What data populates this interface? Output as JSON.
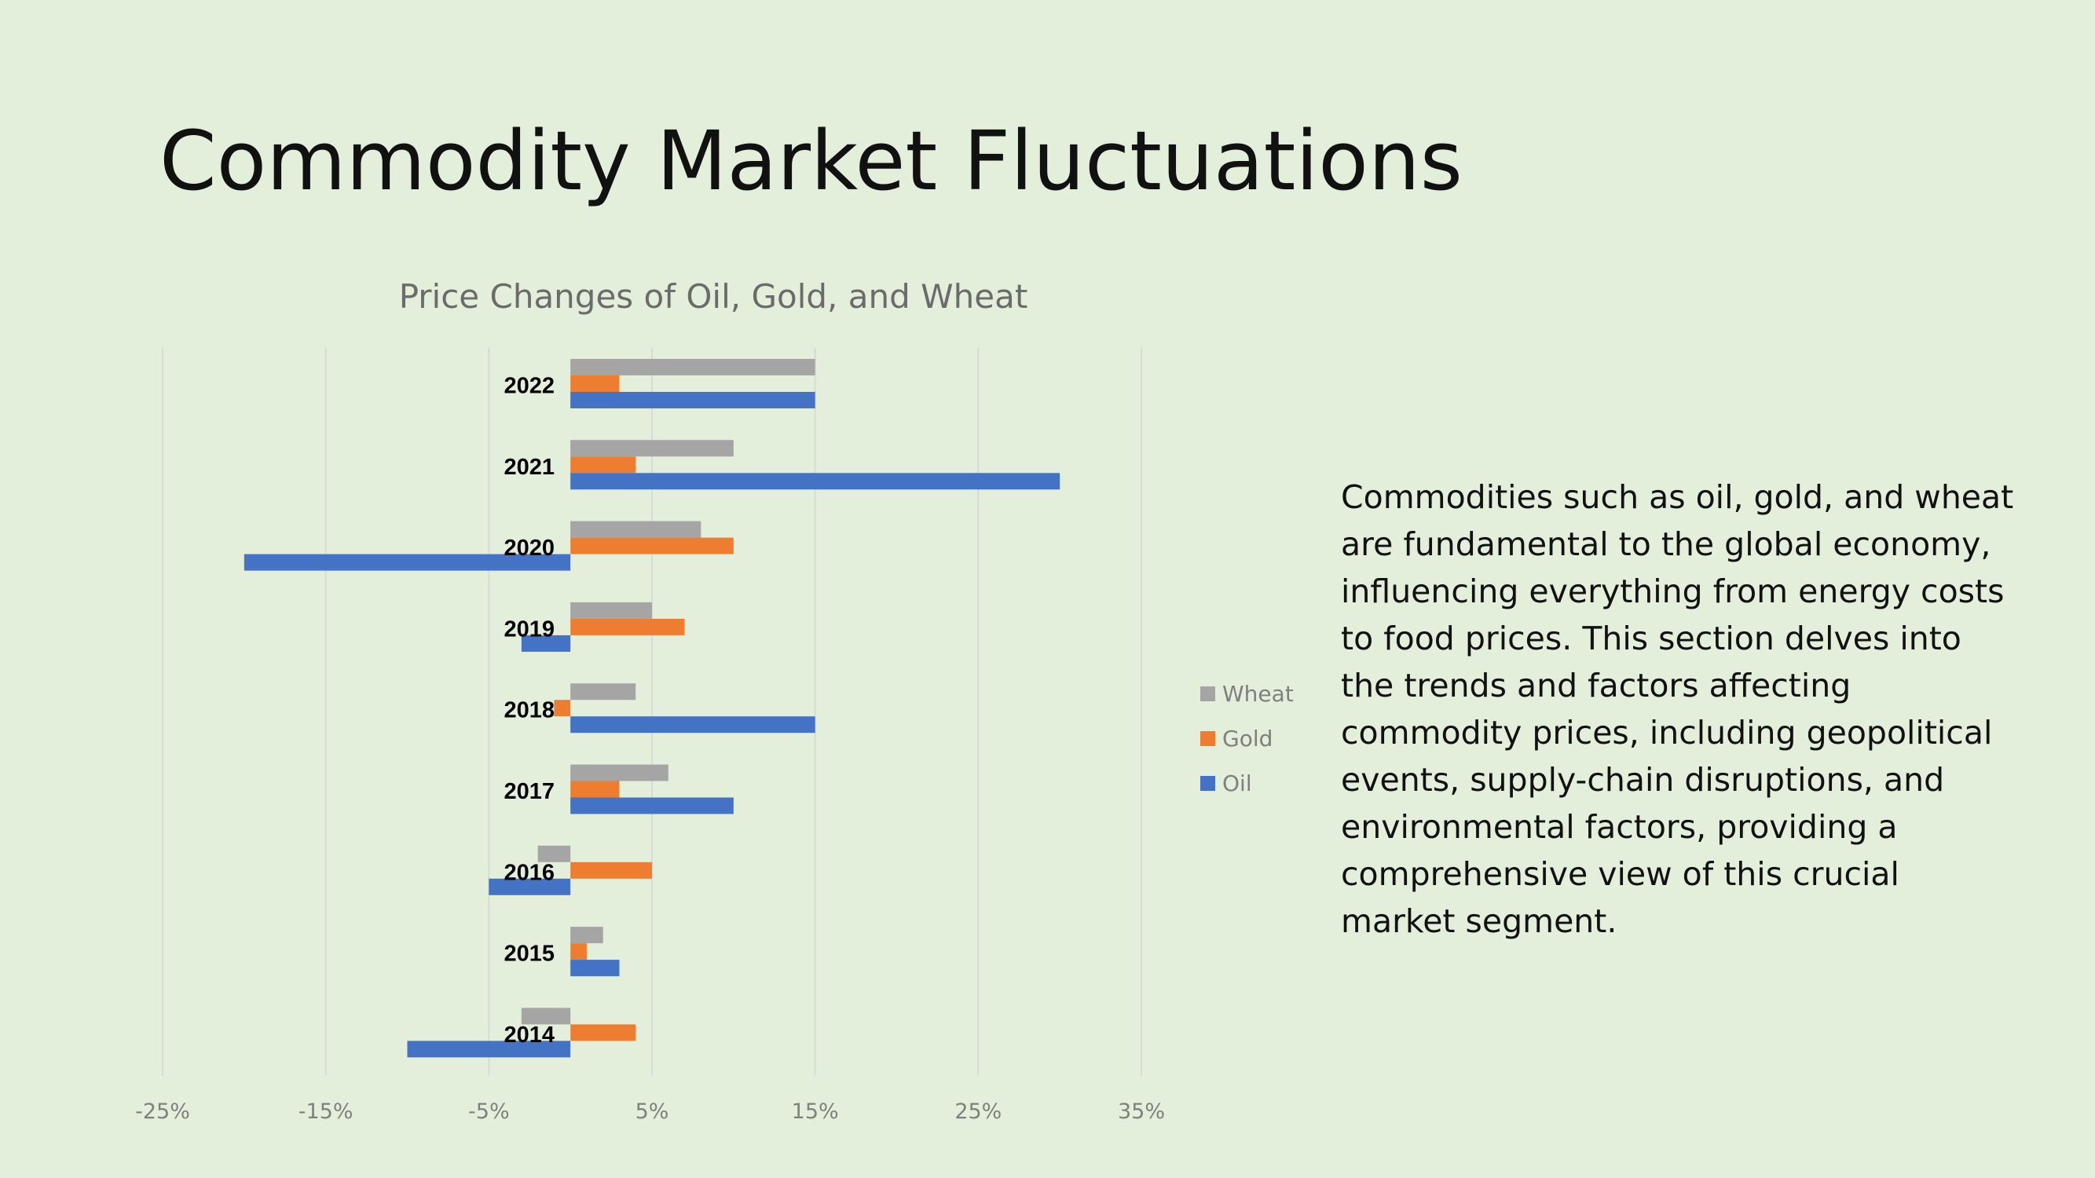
{
  "slide": {
    "title": "Commodity Market Fluctuations",
    "body_text": "Commodities such as oil, gold, and wheat are fundamental to the global economy, influencing everything from energy costs to food prices. This section delves into the trends and factors affecting commodity prices, including geopolitical events, supply-chain disruptions, and environmental factors, providing a comprehensive view of this crucial market segment."
  },
  "colors": {
    "background": "#e4efdb",
    "wheat": "#a5a5a5",
    "gold": "#ed7d31",
    "oil": "#4472c4",
    "gridline": "#d9d9d9",
    "tick_text": "#7f7f7f",
    "chart_title_text": "#6b6b6b"
  },
  "chart_data": {
    "type": "bar",
    "orientation": "horizontal",
    "title": "Price Changes of Oil, Gold, and Wheat",
    "xlabel": "",
    "ylabel": "",
    "categories": [
      "2022",
      "2021",
      "2020",
      "2019",
      "2018",
      "2017",
      "2016",
      "2015",
      "2014"
    ],
    "series": [
      {
        "name": "Wheat",
        "color": "#a5a5a5",
        "values": [
          15,
          10,
          8,
          5,
          4,
          6,
          -2,
          2,
          -3
        ]
      },
      {
        "name": "Gold",
        "color": "#ed7d31",
        "values": [
          3,
          4,
          10,
          7,
          -1,
          3,
          5,
          1,
          4
        ]
      },
      {
        "name": "Oil",
        "color": "#4472c4",
        "values": [
          15,
          30,
          -20,
          -3,
          15,
          10,
          -5,
          3,
          -10
        ]
      }
    ],
    "xlim": [
      -25,
      35
    ],
    "x_ticks": [
      -25,
      -15,
      -5,
      5,
      15,
      25,
      35
    ],
    "x_tick_labels": [
      "-25%",
      "-15%",
      "-5%",
      "5%",
      "15%",
      "25%",
      "35%"
    ],
    "value_unit": "%",
    "grid": "vertical",
    "legend_position": "right"
  }
}
